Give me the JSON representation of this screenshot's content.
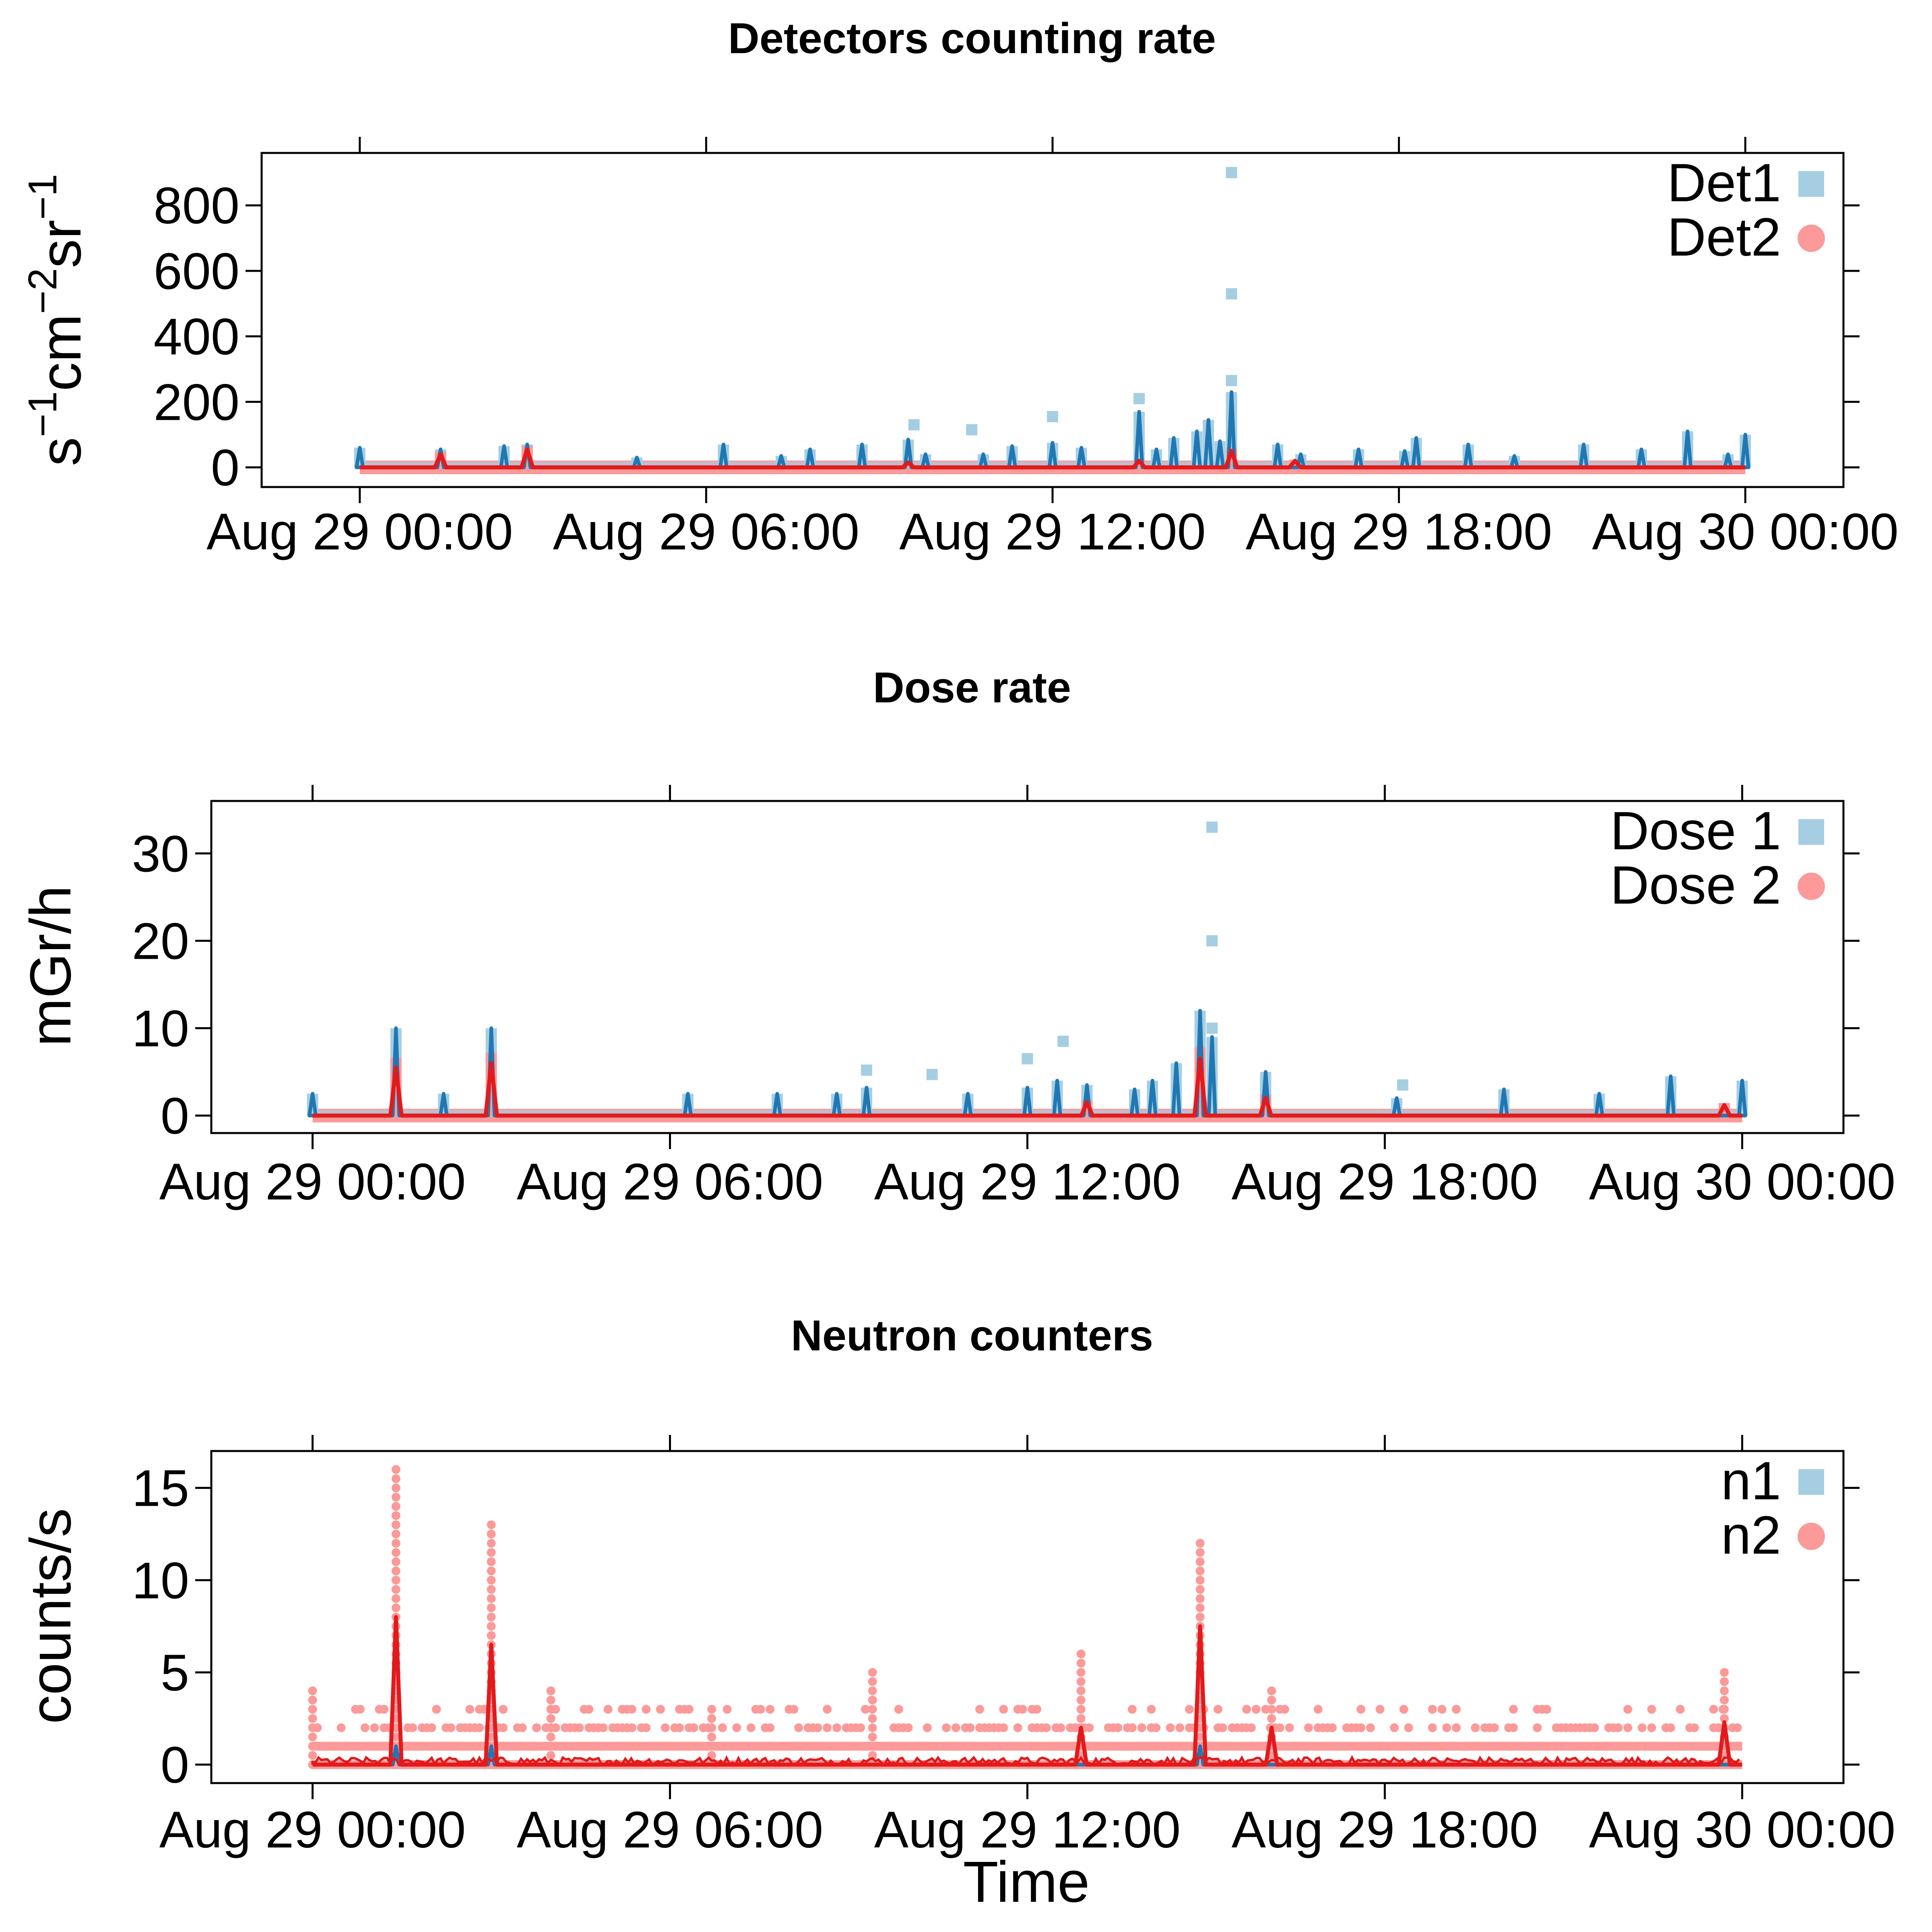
{
  "chart_data": [
    {
      "type": "line",
      "title": "Detectors counting rate",
      "xlabel": "",
      "ylabel": "s^-1 cm^-2 sr^-1",
      "ylabel_parts": {
        "s": "s",
        "e1": "−1",
        "cm": "cm",
        "e2": "−2",
        "sr": "sr",
        "e3": "−1"
      },
      "x_ticks": [
        "Aug 29 00:00",
        "Aug 29 06:00",
        "Aug 29 12:00",
        "Aug 29 18:00",
        "Aug 30 00:00"
      ],
      "y_ticks": [
        "0",
        "200",
        "400",
        "600",
        "800"
      ],
      "y_tick_values": [
        0,
        200,
        400,
        600,
        800
      ],
      "xlim_hours": [
        -1.7,
        25.7
      ],
      "ylim": [
        -60,
        960
      ],
      "legend_position": "top-right",
      "series": [
        {
          "name": "Det1",
          "color_points": "#a6cee3",
          "color_line": "#1f78b4",
          "points_only": [
            [
              15.1,
              900
            ],
            [
              15.1,
              530
            ],
            [
              15.1,
              265
            ],
            [
              13.5,
              210
            ],
            [
              12.0,
              155
            ],
            [
              9.6,
              130
            ],
            [
              10.6,
              115
            ]
          ],
          "peaks": [
            [
              0.0,
              60
            ],
            [
              1.4,
              55
            ],
            [
              2.5,
              65
            ],
            [
              2.9,
              70
            ],
            [
              4.8,
              30
            ],
            [
              6.3,
              70
            ],
            [
              7.3,
              35
            ],
            [
              7.8,
              55
            ],
            [
              8.7,
              70
            ],
            [
              9.5,
              85
            ],
            [
              9.8,
              40
            ],
            [
              10.8,
              40
            ],
            [
              11.3,
              65
            ],
            [
              12.0,
              75
            ],
            [
              12.5,
              60
            ],
            [
              13.5,
              170
            ],
            [
              13.8,
              55
            ],
            [
              14.1,
              90
            ],
            [
              14.5,
              110
            ],
            [
              14.7,
              145
            ],
            [
              14.9,
              80
            ],
            [
              15.1,
              230
            ],
            [
              15.9,
              70
            ],
            [
              16.3,
              40
            ],
            [
              17.3,
              55
            ],
            [
              18.1,
              50
            ],
            [
              18.3,
              90
            ],
            [
              19.2,
              70
            ],
            [
              20.0,
              35
            ],
            [
              21.2,
              70
            ],
            [
              22.2,
              55
            ],
            [
              23.0,
              110
            ],
            [
              23.7,
              40
            ],
            [
              24.0,
              100
            ]
          ]
        },
        {
          "name": "Det2",
          "color_points": "#fb9a99",
          "color_line": "#e31a1c",
          "peaks": [
            [
              1.4,
              40
            ],
            [
              2.9,
              55
            ],
            [
              15.1,
              50
            ],
            [
              16.2,
              20
            ],
            [
              13.5,
              20
            ],
            [
              9.5,
              15
            ]
          ]
        }
      ]
    },
    {
      "type": "line",
      "title": "Dose rate",
      "xlabel": "",
      "ylabel": "mGr/h",
      "x_ticks": [
        "Aug 29 00:00",
        "Aug 29 06:00",
        "Aug 29 12:00",
        "Aug 29 18:00",
        "Aug 30 00:00"
      ],
      "y_ticks": [
        "0",
        "10",
        "20",
        "30"
      ],
      "y_tick_values": [
        0,
        10,
        20,
        30
      ],
      "xlim_hours": [
        -1.7,
        25.7
      ],
      "ylim": [
        -2,
        36
      ],
      "legend_position": "top-right",
      "series": [
        {
          "name": "Dose 1",
          "color_points": "#a6cee3",
          "color_line": "#1f78b4",
          "points_only": [
            [
              15.1,
              33
            ],
            [
              15.1,
              20
            ],
            [
              15.1,
              10
            ],
            [
              12.6,
              8.5
            ],
            [
              12.0,
              6.5
            ],
            [
              9.3,
              5.2
            ],
            [
              10.4,
              4.7
            ],
            [
              18.3,
              3.5
            ]
          ],
          "peaks": [
            [
              0.0,
              2.5
            ],
            [
              1.4,
              10
            ],
            [
              2.2,
              2.5
            ],
            [
              3.0,
              10
            ],
            [
              6.3,
              2.5
            ],
            [
              7.8,
              2.5
            ],
            [
              8.8,
              2.5
            ],
            [
              9.3,
              3.2
            ],
            [
              11.0,
              2.5
            ],
            [
              12.0,
              3.2
            ],
            [
              12.5,
              4.0
            ],
            [
              13.0,
              3.5
            ],
            [
              13.8,
              3.0
            ],
            [
              14.1,
              4.0
            ],
            [
              14.5,
              6.0
            ],
            [
              14.9,
              12.0
            ],
            [
              15.1,
              9.0
            ],
            [
              16.0,
              5.0
            ],
            [
              18.2,
              2.0
            ],
            [
              20.0,
              3.0
            ],
            [
              21.6,
              2.5
            ],
            [
              22.8,
              4.5
            ],
            [
              24.0,
              4.0
            ]
          ]
        },
        {
          "name": "Dose 2",
          "color_points": "#fb9a99",
          "color_line": "#e31a1c",
          "peaks": [
            [
              1.4,
              5.5
            ],
            [
              3.0,
              6.0
            ],
            [
              14.9,
              6.5
            ],
            [
              16.0,
              2.0
            ],
            [
              13.0,
              1.5
            ],
            [
              23.7,
              1.2
            ]
          ]
        }
      ]
    },
    {
      "type": "line",
      "title": "Neutron counters",
      "xlabel": "Time",
      "ylabel": "counts/s",
      "x_ticks": [
        "Aug 29 00:00",
        "Aug 29 06:00",
        "Aug 29 12:00",
        "Aug 29 18:00",
        "Aug 30 00:00"
      ],
      "y_ticks": [
        "0",
        "5",
        "10",
        "15"
      ],
      "y_tick_values": [
        0,
        5,
        10,
        15
      ],
      "xlim_hours": [
        -1.7,
        25.7
      ],
      "ylim": [
        -1,
        17
      ],
      "legend_position": "top-right",
      "series": [
        {
          "name": "n1",
          "color_points": "#a6cee3",
          "color_line": "#1f78b4",
          "peaks": [
            [
              1.4,
              1.0
            ],
            [
              3.0,
              1.0
            ],
            [
              14.9,
              1.0
            ]
          ]
        },
        {
          "name": "n2",
          "color_points": "#fb9a99",
          "color_line": "#e31a1c",
          "point_columns": [
            [
              1.4,
              16
            ],
            [
              3.0,
              13
            ],
            [
              14.9,
              12
            ],
            [
              12.9,
              6
            ],
            [
              16.1,
              4
            ],
            [
              23.7,
              5
            ],
            [
              9.4,
              5
            ],
            [
              0.0,
              4
            ],
            [
              4.0,
              4
            ],
            [
              6.7,
              3
            ]
          ],
          "peaks": [
            [
              1.4,
              8.0
            ],
            [
              3.0,
              6.5
            ],
            [
              14.9,
              7.5
            ],
            [
              12.9,
              2.0
            ],
            [
              16.1,
              2.0
            ],
            [
              23.7,
              2.3
            ]
          ]
        }
      ]
    }
  ]
}
